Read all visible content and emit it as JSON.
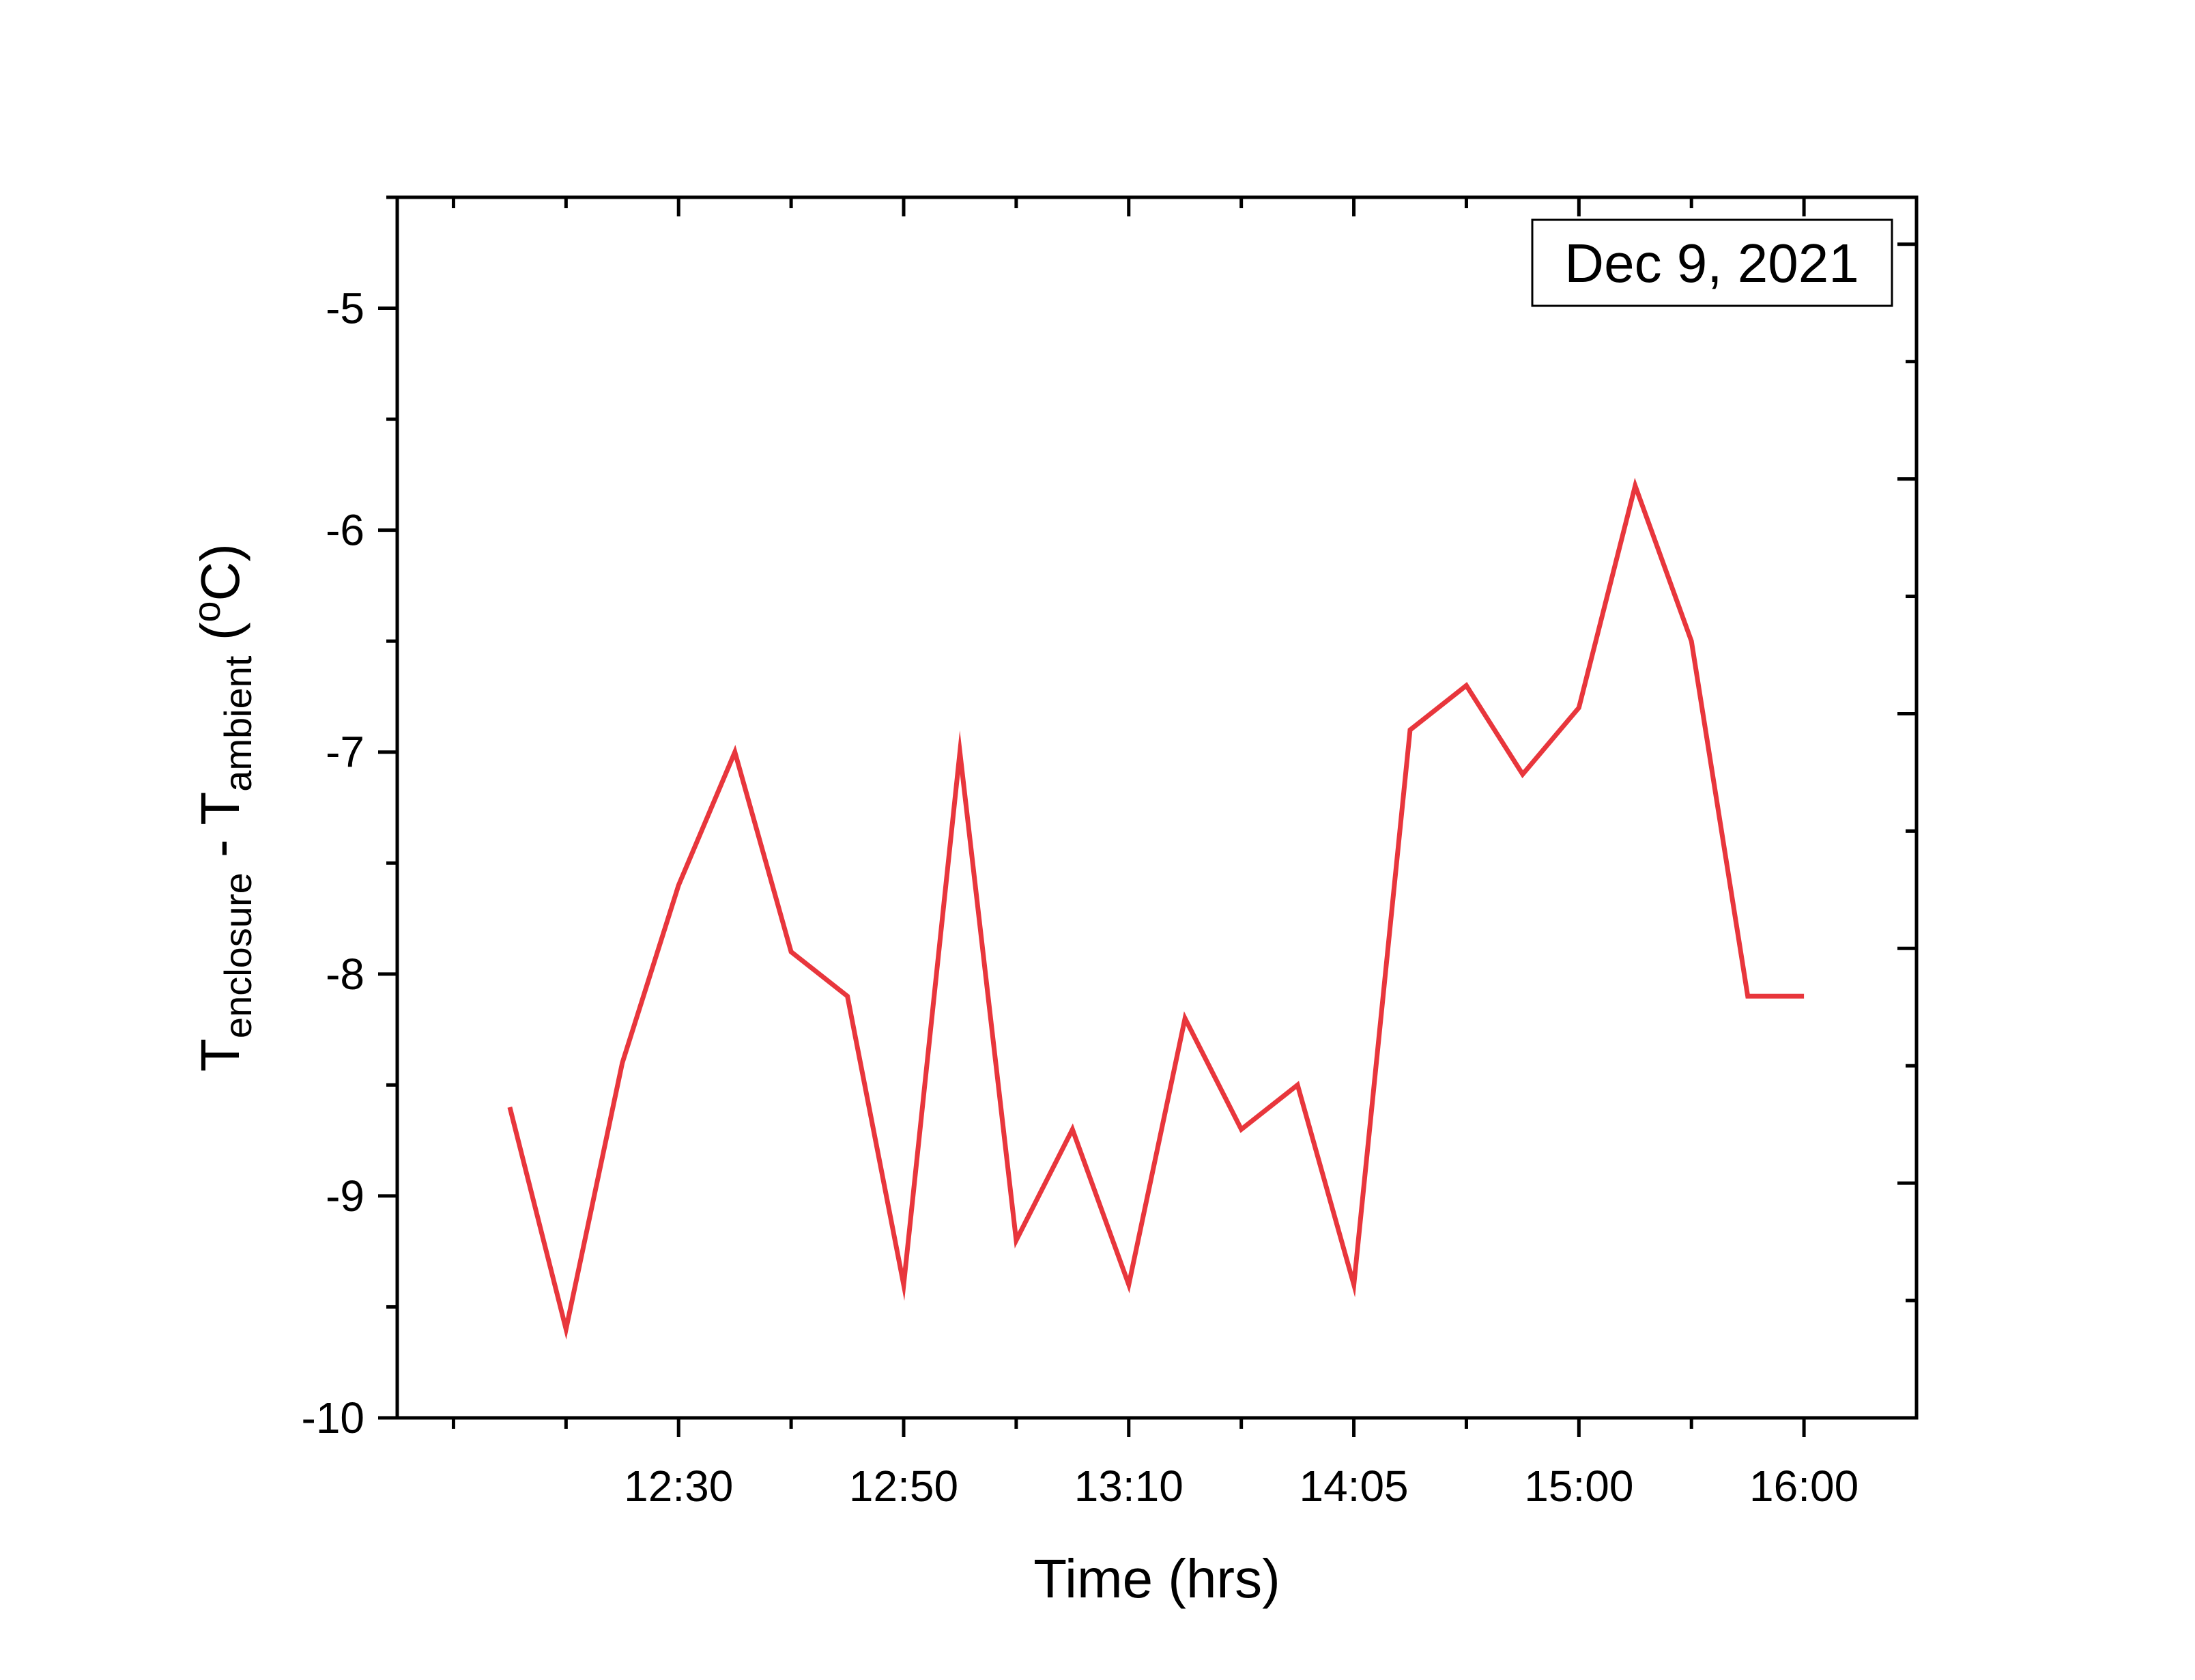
{
  "chart_data": {
    "type": "line",
    "title": "",
    "annotation": "Dec 9, 2021",
    "xlabel": "Time (hrs)",
    "ylabel": {
      "main": "T",
      "sub1": "enclosure",
      "mid": " - T",
      "sub2": "ambient",
      "unit_open": " (",
      "unit_sup": "o",
      "unit_close": "C)"
    },
    "x_tick_labels": [
      {
        "index": 4,
        "label": "12:30"
      },
      {
        "index": 8,
        "label": "12:50"
      },
      {
        "index": 12,
        "label": "13:10"
      },
      {
        "index": 16,
        "label": "14:05"
      },
      {
        "index": 20,
        "label": "15:00"
      },
      {
        "index": 24,
        "label": "16:00"
      }
    ],
    "x_minor_tick_indices": [
      0,
      2,
      6,
      10,
      14,
      18,
      22
    ],
    "xlim": [
      -1,
      26
    ],
    "ylim": [
      -10,
      -4.5
    ],
    "y_ticks": [
      -10,
      -9,
      -8,
      -7,
      -6,
      -5
    ],
    "y_tick_labels": [
      "-10",
      "-9",
      "-8",
      "-7",
      "-6",
      "-5"
    ],
    "y_minor_ticks": [
      -9.5,
      -8.5,
      -7.5,
      -6.5,
      -5.5,
      -4.5
    ],
    "grid": false,
    "legend": "none",
    "line_color": "#e8363c",
    "series": [
      {
        "x": [
          1,
          2,
          3,
          4,
          5,
          6,
          7,
          8,
          9,
          10,
          11,
          12,
          13,
          14,
          15,
          16,
          17,
          18,
          19,
          20,
          21,
          22,
          23,
          24
        ],
        "values": [
          -8.6,
          -9.6,
          -8.4,
          -7.6,
          -7.0,
          -7.9,
          -8.1,
          -9.4,
          -7.0,
          -9.2,
          -8.7,
          -9.4,
          -8.2,
          -8.7,
          -8.5,
          -9.4,
          -6.9,
          -6.7,
          -7.1,
          -6.8,
          -5.8,
          -6.5,
          -8.1,
          -8.1
        ]
      }
    ]
  }
}
